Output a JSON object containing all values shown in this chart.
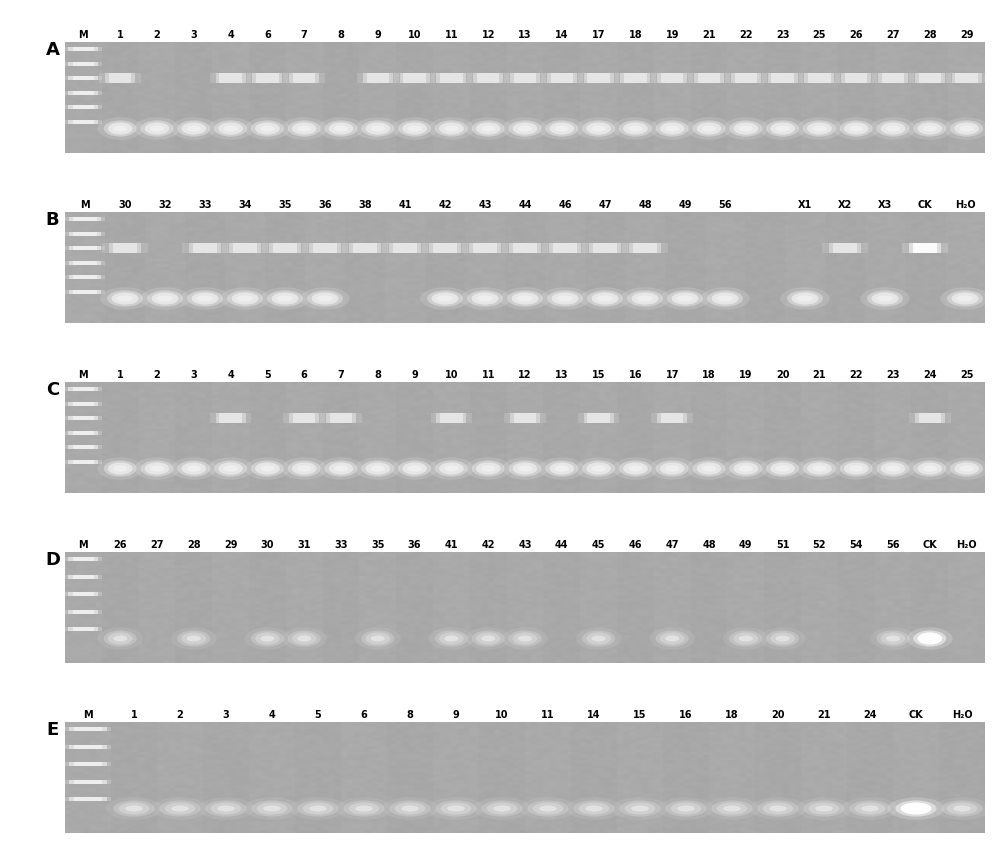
{
  "panels": [
    {
      "label": "A",
      "lane_labels": [
        "M",
        "1",
        "2",
        "3",
        "4",
        "6",
        "7",
        "8",
        "9",
        "10",
        "11",
        "12",
        "13",
        "14",
        "17",
        "18",
        "19",
        "21",
        "22",
        "23",
        "25",
        "26",
        "27",
        "28",
        "29"
      ],
      "has_upper_band": [
        false,
        true,
        false,
        false,
        true,
        true,
        true,
        false,
        true,
        true,
        true,
        true,
        true,
        true,
        true,
        true,
        true,
        true,
        true,
        true,
        true,
        true,
        true,
        true,
        true
      ],
      "has_lower_band": [
        true,
        true,
        true,
        true,
        true,
        true,
        true,
        true,
        true,
        true,
        true,
        true,
        true,
        true,
        true,
        true,
        true,
        true,
        true,
        true,
        true,
        true,
        true,
        true,
        true
      ],
      "marker_bands": 6,
      "bg_color": "#3a3a3a",
      "band_color": "#e8e8e8"
    },
    {
      "label": "B",
      "lane_labels": [
        "M",
        "30",
        "32",
        "33",
        "34",
        "35",
        "36",
        "38",
        "41",
        "42",
        "43",
        "44",
        "46",
        "47",
        "48",
        "49",
        "56",
        "",
        "X1",
        "X2",
        "X3",
        "CK",
        "H₂O"
      ],
      "has_upper_band": [
        false,
        true,
        false,
        true,
        true,
        true,
        true,
        true,
        true,
        true,
        true,
        true,
        true,
        true,
        true,
        false,
        false,
        false,
        false,
        true,
        false,
        true,
        false
      ],
      "has_lower_band": [
        true,
        true,
        true,
        true,
        true,
        true,
        true,
        false,
        false,
        true,
        true,
        true,
        true,
        true,
        true,
        true,
        true,
        false,
        true,
        false,
        true,
        false,
        true
      ],
      "marker_bands": 6,
      "bg_color": "#3a3a3a",
      "band_color": "#e8e8e8"
    },
    {
      "label": "C",
      "lane_labels": [
        "M",
        "1",
        "2",
        "3",
        "4",
        "5",
        "6",
        "7",
        "8",
        "9",
        "10",
        "11",
        "12",
        "13",
        "15",
        "16",
        "17",
        "18",
        "19",
        "20",
        "21",
        "22",
        "23",
        "24",
        "25"
      ],
      "has_upper_band": [
        false,
        false,
        false,
        false,
        true,
        false,
        true,
        true,
        false,
        false,
        true,
        false,
        true,
        false,
        true,
        false,
        true,
        false,
        false,
        false,
        false,
        false,
        false,
        true,
        false
      ],
      "has_lower_band": [
        true,
        true,
        true,
        true,
        true,
        true,
        true,
        true,
        true,
        true,
        true,
        true,
        true,
        true,
        true,
        true,
        true,
        true,
        true,
        true,
        true,
        true,
        true,
        true,
        true
      ],
      "marker_bands": 6,
      "bg_color": "#3a3a3a",
      "band_color": "#e8e8e8"
    },
    {
      "label": "D",
      "lane_labels": [
        "M",
        "26",
        "27",
        "28",
        "29",
        "30",
        "31",
        "33",
        "35",
        "36",
        "41",
        "42",
        "43",
        "44",
        "45",
        "46",
        "47",
        "48",
        "49",
        "51",
        "52",
        "54",
        "56",
        "CK",
        "H₂O"
      ],
      "has_upper_band": [
        false,
        false,
        false,
        false,
        false,
        false,
        false,
        false,
        false,
        false,
        false,
        false,
        false,
        false,
        false,
        false,
        false,
        false,
        false,
        false,
        false,
        false,
        false,
        false,
        false
      ],
      "has_lower_band": [
        true,
        true,
        false,
        true,
        false,
        true,
        true,
        false,
        true,
        false,
        true,
        true,
        true,
        false,
        true,
        false,
        true,
        false,
        true,
        true,
        false,
        false,
        true,
        true,
        false
      ],
      "marker_bands": 5,
      "bg_color": "#2a2a2a",
      "band_color": "#d0d0d0"
    },
    {
      "label": "E",
      "lane_labels": [
        "M",
        "1",
        "2",
        "3",
        "4",
        "5",
        "6",
        "8",
        "9",
        "10",
        "11",
        "14",
        "15",
        "16",
        "18",
        "20",
        "21",
        "24",
        "CK",
        "H₂O"
      ],
      "has_upper_band": [
        false,
        false,
        false,
        false,
        false,
        false,
        false,
        false,
        false,
        false,
        false,
        false,
        false,
        false,
        false,
        false,
        false,
        false,
        false,
        false
      ],
      "has_lower_band": [
        true,
        true,
        true,
        true,
        true,
        true,
        true,
        true,
        true,
        true,
        true,
        true,
        true,
        true,
        true,
        true,
        true,
        true,
        true,
        true
      ],
      "marker_bands": 5,
      "bg_color": "#2a2a2a",
      "band_color": "#d0d0d0"
    }
  ],
  "figure_width": 10.0,
  "figure_height": 8.5,
  "dpi": 100
}
